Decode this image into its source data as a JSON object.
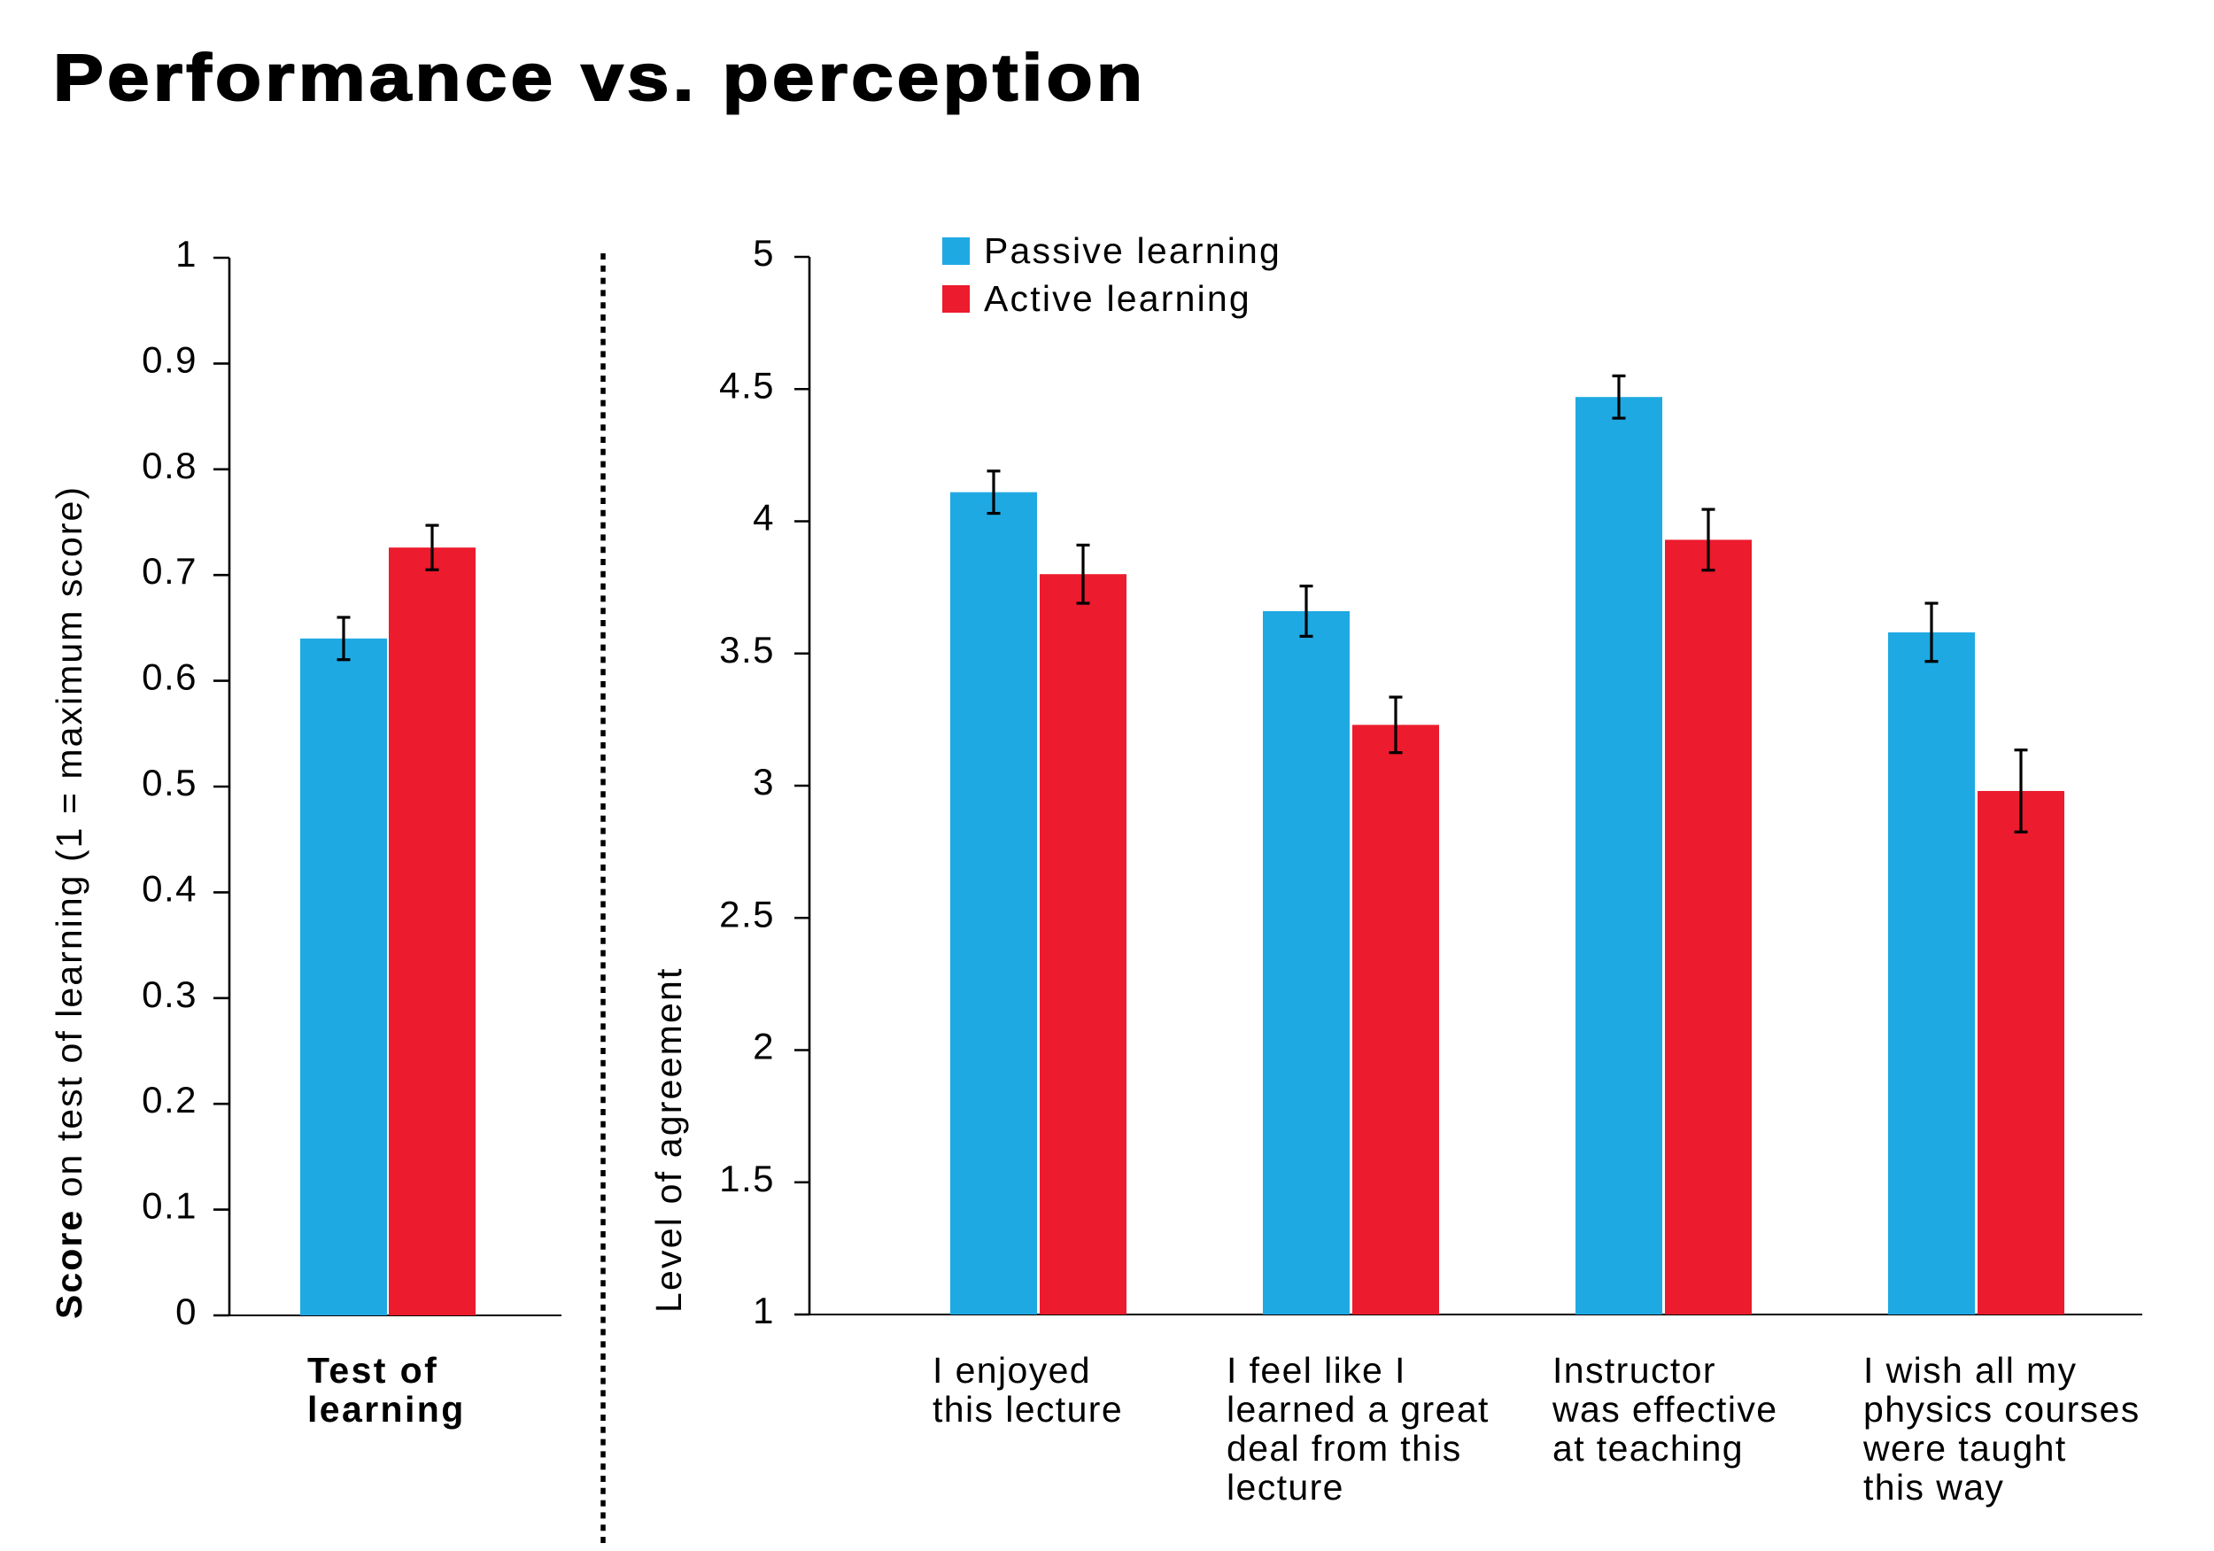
{
  "title": "Performance vs. perception",
  "legend": {
    "items": [
      {
        "label": "Passive learning",
        "color": "#1fa9e3"
      },
      {
        "label": "Active learning",
        "color": "#ec1b2d"
      }
    ]
  },
  "colors": {
    "passive_blue": "#1fa9e3",
    "active_red": "#ec1b2d",
    "axis_black": "#000000",
    "background": "#ffffff"
  },
  "chart_data": [
    {
      "id": "test-of-learning",
      "type": "bar",
      "title": "",
      "xlabel": "",
      "ylabel_bold": "Score",
      "ylabel_rest": " on test of learning  (1 = maximum score)",
      "ylim": [
        0,
        1
      ],
      "ytick_step": 0.1,
      "ytick_labels": [
        "0",
        "0.1",
        "0.2",
        "0.3",
        "0.4",
        "0.5",
        "0.6",
        "0.7",
        "0.8",
        "0.9",
        "1"
      ],
      "grid": false,
      "categories": [
        "Test of\nlearning"
      ],
      "series": [
        {
          "name": "Passive learning",
          "values": [
            0.64
          ],
          "errors": [
            0.02
          ]
        },
        {
          "name": "Active learning",
          "values": [
            0.726
          ],
          "errors": [
            0.021
          ]
        }
      ]
    },
    {
      "id": "perception-survey",
      "type": "bar",
      "title": "",
      "xlabel": "",
      "ylabel_bold": "",
      "ylabel_rest": "Level of agreement",
      "ylim": [
        1,
        5
      ],
      "ytick_step": 0.5,
      "ytick_labels": [
        "1",
        "1.5",
        "2",
        "2.5",
        "3",
        "3.5",
        "4",
        "4.5",
        "5"
      ],
      "grid": false,
      "legend_position": "top",
      "categories": [
        "I enjoyed\nthis lecture",
        "I feel like I\nlearned a great\ndeal from this\nlecture",
        "Instructor\nwas effective\nat teaching",
        "I wish all my\nphysics courses\nwere taught\nthis way"
      ],
      "series": [
        {
          "name": "Passive learning",
          "values": [
            4.11,
            3.66,
            4.47,
            3.58
          ],
          "errors": [
            0.08,
            0.095,
            0.08,
            0.11
          ]
        },
        {
          "name": "Active learning",
          "values": [
            3.8,
            3.23,
            3.93,
            2.98
          ],
          "errors": [
            0.11,
            0.105,
            0.115,
            0.155
          ]
        }
      ]
    }
  ]
}
